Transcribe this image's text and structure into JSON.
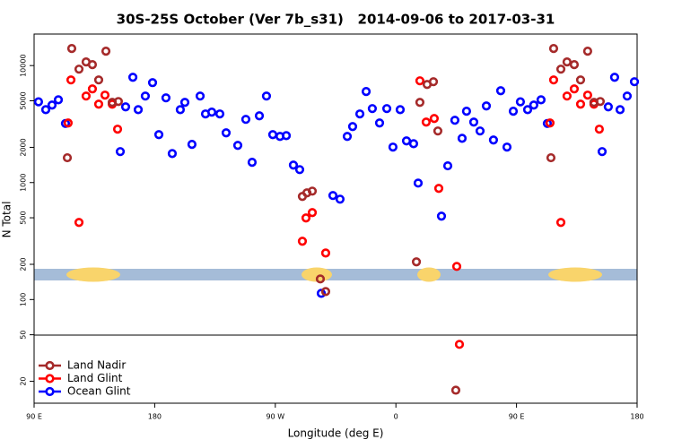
{
  "chart_data": {
    "type": "scatter",
    "title": "30S-25S October (Ver 7b_s31)   2014-09-06 to 2017-03-31",
    "x_label": "Longitude (deg E)",
    "y_label": "N Total",
    "xlim": [
      90,
      540
    ],
    "xticks": [
      {
        "value": 90,
        "label": "90 E"
      },
      {
        "value": 180,
        "label": "180"
      },
      {
        "value": 270,
        "label": "90 W"
      },
      {
        "value": 360,
        "label": "0"
      },
      {
        "value": 450,
        "label": "90 E"
      },
      {
        "value": 540,
        "label": "180"
      }
    ],
    "ylim": [
      13,
      18600
    ],
    "y_scale": "log",
    "yticks": [
      20,
      50,
      100,
      200,
      500,
      1000,
      2000,
      5000,
      10000
    ],
    "legend": "lower left",
    "series": [
      {
        "name": "Land Nadir",
        "color": "#a52a2a",
        "x": [
          114.8,
          118.1,
          123.5,
          128.8,
          133.5,
          138.2,
          143.6,
          148.3,
          152.9,
          290.2,
          293.6,
          297.6,
          303.6,
          307.6,
          375.3,
          377.9,
          383.3,
          388.0,
          391.3,
          404.7,
          475.7,
          477.7,
          483.1,
          487.7,
          493.1,
          497.8,
          503.1,
          507.8,
          512.5
        ],
        "values": [
          1630,
          14000,
          9320,
          10740,
          10190,
          7540,
          13270,
          4850,
          4930,
          761,
          816,
          845,
          150,
          117,
          210,
          4850,
          6900,
          7280,
          2760,
          16.8,
          1630,
          14000,
          9320,
          10740,
          10190,
          7540,
          13270,
          4850,
          4930
        ]
      },
      {
        "name": "Land Glint",
        "color": "#ff0000",
        "x": [
          115.4,
          117.5,
          123.5,
          128.8,
          133.5,
          138.2,
          142.9,
          148.3,
          152.3,
          290.2,
          292.9,
          297.6,
          307.6,
          377.9,
          382.6,
          388.6,
          392.0,
          405.4,
          407.4,
          475.0,
          477.7,
          483.1,
          487.7,
          493.1,
          497.8,
          503.1,
          507.8,
          511.8
        ],
        "values": [
          3230,
          7540,
          456,
          5490,
          6320,
          4680,
          5590,
          4680,
          2860,
          315,
          498,
          554,
          250,
          7410,
          3290,
          3530,
          892,
          192,
          41.4,
          3230,
          7540,
          456,
          5490,
          6320,
          4680,
          5590,
          4680,
          2860
        ]
      },
      {
        "name": "Ocean Glint",
        "color": "#0000ff",
        "x": [
          93.3,
          98.7,
          103.4,
          108.1,
          113.4,
          154.3,
          158.3,
          163.7,
          167.7,
          173.0,
          178.4,
          183.1,
          188.4,
          193.1,
          199.1,
          202.5,
          207.8,
          213.9,
          217.9,
          222.6,
          228.6,
          233.3,
          242.0,
          248.0,
          252.7,
          258.1,
          263.4,
          268.1,
          273.5,
          278.2,
          283.5,
          288.2,
          304.3,
          313.0,
          318.3,
          323.7,
          327.7,
          333.1,
          337.8,
          342.4,
          347.8,
          353.2,
          357.8,
          363.2,
          367.9,
          373.2,
          376.6,
          394.0,
          398.7,
          404.0,
          409.4,
          412.7,
          418.1,
          422.8,
          427.5,
          432.8,
          438.2,
          442.9,
          447.6,
          452.9,
          458.3,
          462.9,
          468.3,
          473.0,
          513.9,
          518.5,
          523.2,
          527.3,
          532.6,
          538.0
        ],
        "values": [
          4900,
          4200,
          4600,
          5100,
          3200,
          1840,
          4440,
          7940,
          4200,
          5490,
          7150,
          2570,
          5300,
          1770,
          4200,
          4850,
          2120,
          5490,
          3860,
          4000,
          3860,
          2660,
          2080,
          3470,
          1490,
          3720,
          5490,
          2570,
          2480,
          2520,
          1410,
          1290,
          113,
          775,
          721,
          2480,
          3010,
          3860,
          6000,
          4290,
          3230,
          4290,
          2010,
          4200,
          2270,
          2150,
          990,
          516,
          1390,
          3410,
          2390,
          4070,
          3290,
          2760,
          4520,
          2310,
          6100,
          2010,
          4070,
          4900,
          4200,
          4600,
          5100,
          3200,
          1840,
          4440,
          7940,
          4200,
          5490,
          7280
        ]
      }
    ]
  }
}
